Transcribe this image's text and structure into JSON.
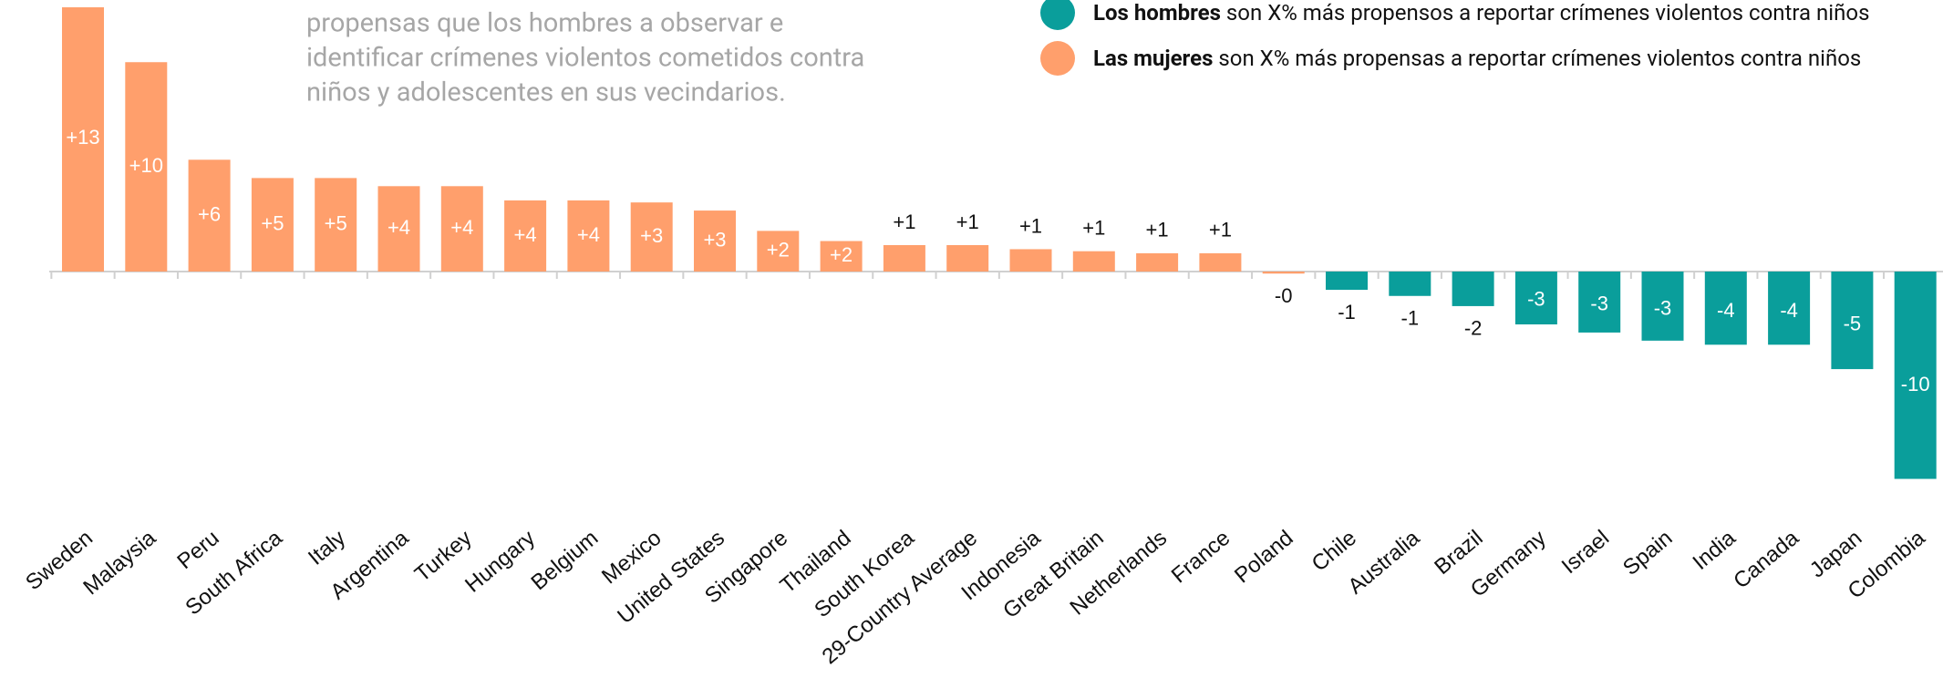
{
  "chart_data": {
    "type": "bar",
    "subtitle": [
      "propensas que los hombres a observar e",
      "identificar crímenes violentos cometidos contra",
      "niños y adolescentes en sus vecindarios."
    ],
    "legend": [
      {
        "bold": "Los hombres",
        "text": " son X% más propensos a reportar crímenes violentos contra niños",
        "color": "#0a9e9b"
      },
      {
        "bold": "Las mujeres",
        "text": " son X% más propensas a reportar crímenes violentos contra niños",
        "color": "#ff9f6c"
      }
    ],
    "categories": [
      "Sweden",
      "Malaysia",
      "Peru",
      "South Africa",
      "Italy",
      "Argentina",
      "Turkey",
      "Hungary",
      "Belgium",
      "Mexico",
      "United States",
      "Singapore",
      "Thailand",
      "South Korea",
      "29-Country Average",
      "Indonesia",
      "Great Britain",
      "Netherlands",
      "France",
      "Poland",
      "Chile",
      "Australia",
      "Brazil",
      "Germany",
      "Israel",
      "Spain",
      "India",
      "Canada",
      "Japan",
      "Colombia"
    ],
    "values": [
      13,
      10.3,
      5.5,
      4.6,
      4.6,
      4.2,
      4.2,
      3.5,
      3.5,
      3.4,
      3.0,
      2.0,
      1.5,
      1.3,
      1.3,
      1.1,
      1.0,
      0.9,
      0.9,
      -0.1,
      -0.9,
      -1.2,
      -1.7,
      -2.6,
      -3.0,
      -3.4,
      -3.6,
      -3.6,
      -4.8,
      -10.2
    ],
    "value_labels": [
      "+13",
      "+10",
      "+6",
      "+5",
      "+5",
      "+4",
      "+4",
      "+4",
      "+4",
      "+3",
      "+3",
      "+2",
      "+2",
      "+1",
      "+1",
      "+1",
      "+1",
      "+1",
      "+1",
      "-0",
      "-1",
      "-1",
      "-2",
      "-3",
      "-3",
      "-3",
      "-4",
      "-4",
      "-5",
      "-10"
    ],
    "colors": [
      "#ff9f6c",
      "#ff9f6c",
      "#ff9f6c",
      "#ff9f6c",
      "#ff9f6c",
      "#ff9f6c",
      "#ff9f6c",
      "#ff9f6c",
      "#ff9f6c",
      "#ff9f6c",
      "#ff9f6c",
      "#ff9f6c",
      "#ff9f6c",
      "#ff9f6c",
      "#ff9f6c",
      "#ff9f6c",
      "#ff9f6c",
      "#ff9f6c",
      "#ff9f6c",
      "#ff9f6c",
      "#0a9e9b",
      "#0a9e9b",
      "#0a9e9b",
      "#0a9e9b",
      "#0a9e9b",
      "#0a9e9b",
      "#0a9e9b",
      "#0a9e9b",
      "#0a9e9b",
      "#0a9e9b"
    ]
  }
}
